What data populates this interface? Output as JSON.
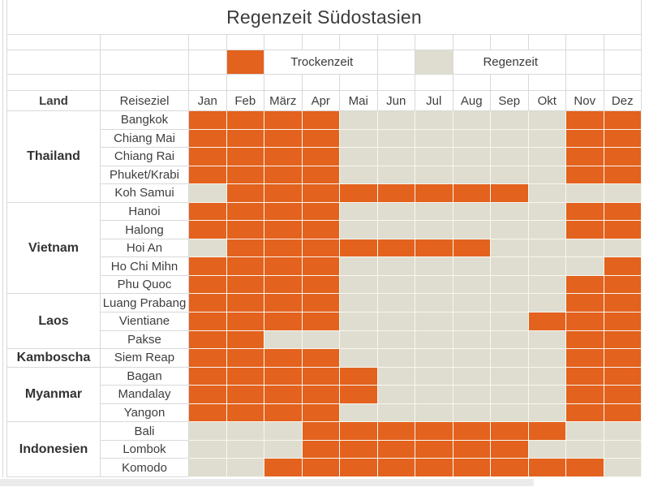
{
  "chart_data": {
    "type": "heatmap",
    "title": "Regenzeit Südostasien",
    "columns": {
      "land": "Land",
      "reiseziel": "Reiseziel"
    },
    "months": [
      "Jan",
      "Feb",
      "März",
      "Apr",
      "Mai",
      "Jun",
      "Jul",
      "Aug",
      "Sep",
      "Okt",
      "Nov",
      "Dez"
    ],
    "legend": {
      "dry_label": "Trockenzeit",
      "wet_label": "Regenzeit"
    },
    "colors": {
      "dry": "#e2621e",
      "wet": "#deddd0"
    },
    "legend_note": "dry_months lists month numbers (1=Jan .. 12=Dez) shown orange (Trockenzeit); all other months are beige (Regenzeit)",
    "groups": [
      {
        "land": "Thailand",
        "destinations": [
          {
            "name": "Bangkok",
            "dry_months": [
              1,
              2,
              3,
              4,
              11,
              12
            ]
          },
          {
            "name": "Chiang Mai",
            "dry_months": [
              1,
              2,
              3,
              4,
              11,
              12
            ]
          },
          {
            "name": "Chiang Rai",
            "dry_months": [
              1,
              2,
              3,
              4,
              11,
              12
            ]
          },
          {
            "name": "Phuket/Krabi",
            "dry_months": [
              1,
              2,
              3,
              4,
              11,
              12
            ]
          },
          {
            "name": "Koh Samui",
            "dry_months": [
              2,
              3,
              4,
              5,
              6,
              7,
              8,
              9
            ]
          }
        ]
      },
      {
        "land": "Vietnam",
        "destinations": [
          {
            "name": "Hanoi",
            "dry_months": [
              1,
              2,
              3,
              4,
              11,
              12
            ]
          },
          {
            "name": "Halong",
            "dry_months": [
              1,
              2,
              3,
              4,
              11,
              12
            ]
          },
          {
            "name": "Hoi An",
            "dry_months": [
              2,
              3,
              4,
              5,
              6,
              7,
              8
            ]
          },
          {
            "name": "Ho Chi Mihn",
            "dry_months": [
              1,
              2,
              3,
              4,
              12
            ]
          },
          {
            "name": "Phu Quoc",
            "dry_months": [
              1,
              2,
              3,
              4,
              11,
              12
            ]
          }
        ]
      },
      {
        "land": "Laos",
        "destinations": [
          {
            "name": "Luang Prabang",
            "dry_months": [
              1,
              2,
              3,
              4,
              11,
              12
            ]
          },
          {
            "name": "Vientiane",
            "dry_months": [
              1,
              2,
              3,
              4,
              10,
              11,
              12
            ]
          },
          {
            "name": "Pakse",
            "dry_months": [
              1,
              2,
              11,
              12
            ]
          }
        ]
      },
      {
        "land": "Kamboscha",
        "destinations": [
          {
            "name": "Siem Reap",
            "dry_months": [
              1,
              2,
              3,
              4,
              11,
              12
            ]
          }
        ]
      },
      {
        "land": "Myanmar",
        "destinations": [
          {
            "name": "Bagan",
            "dry_months": [
              1,
              2,
              3,
              4,
              5,
              11,
              12
            ]
          },
          {
            "name": "Mandalay",
            "dry_months": [
              1,
              2,
              3,
              4,
              5,
              11,
              12
            ]
          },
          {
            "name": "Yangon",
            "dry_months": [
              1,
              2,
              3,
              4,
              11,
              12
            ]
          }
        ]
      },
      {
        "land": "Indonesien",
        "destinations": [
          {
            "name": "Bali",
            "dry_months": [
              4,
              5,
              6,
              7,
              8,
              9,
              10
            ]
          },
          {
            "name": "Lombok",
            "dry_months": [
              4,
              5,
              6,
              7,
              8,
              9
            ]
          },
          {
            "name": "Komodo",
            "dry_months": [
              3,
              4,
              5,
              6,
              7,
              8,
              9,
              10,
              11
            ]
          }
        ]
      }
    ]
  }
}
